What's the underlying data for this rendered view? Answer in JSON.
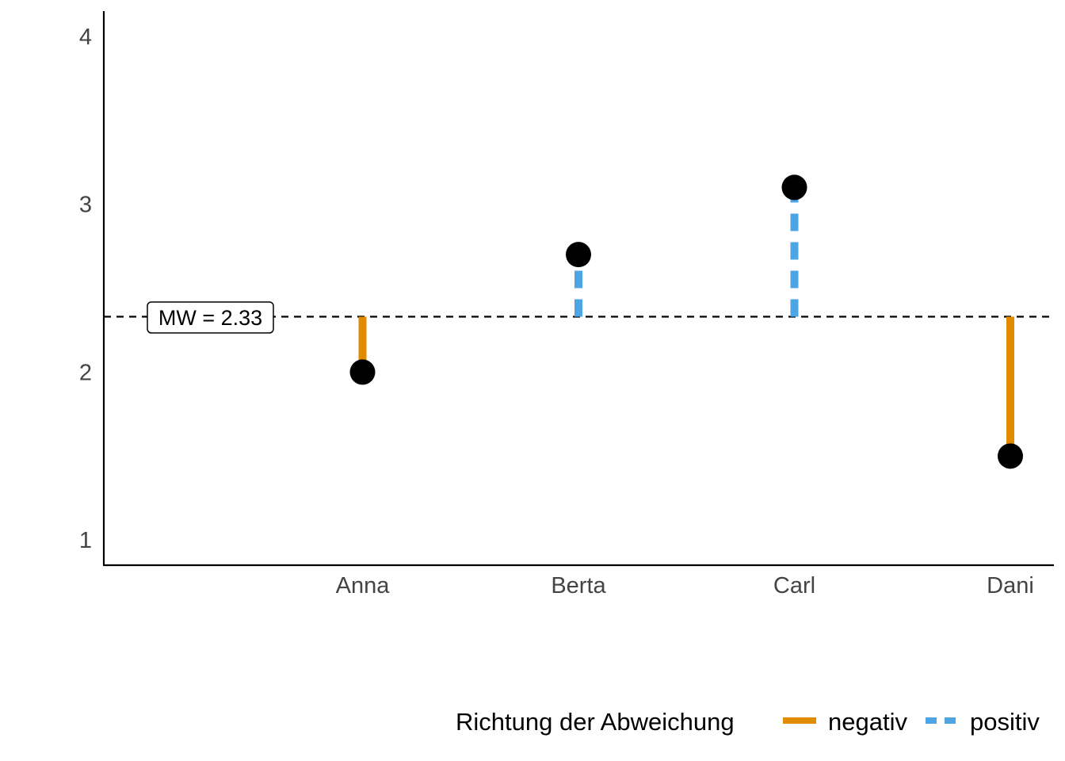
{
  "chart_data": {
    "type": "lollipop",
    "categories": [
      "Anna",
      "Berta",
      "Carl",
      "Dani"
    ],
    "values": [
      2.0,
      2.7,
      3.1,
      1.5
    ],
    "mean": 2.33,
    "mean_label": "MW = 2.33",
    "direction": [
      "negativ",
      "positiv",
      "positiv",
      "negativ"
    ],
    "xlabel": "",
    "ylabel": "",
    "ylim": [
      0.85,
      4.15
    ],
    "y_ticks": [
      "1",
      "2",
      "3",
      "4"
    ],
    "grid": false,
    "legend": {
      "title": "Richtung der Abweichung",
      "position": "bottom",
      "entries": [
        {
          "label": "negativ",
          "color": "#E08B00",
          "linetype": "solid"
        },
        {
          "label": "positiv",
          "color": "#4DA6E3",
          "linetype": "dashed"
        }
      ]
    },
    "colors": {
      "negativ": "#E08B00",
      "positiv": "#4DA6E3",
      "point": "#000000",
      "mean_line": "#000000",
      "axis": "#000000",
      "tick_text": "#444444"
    }
  }
}
